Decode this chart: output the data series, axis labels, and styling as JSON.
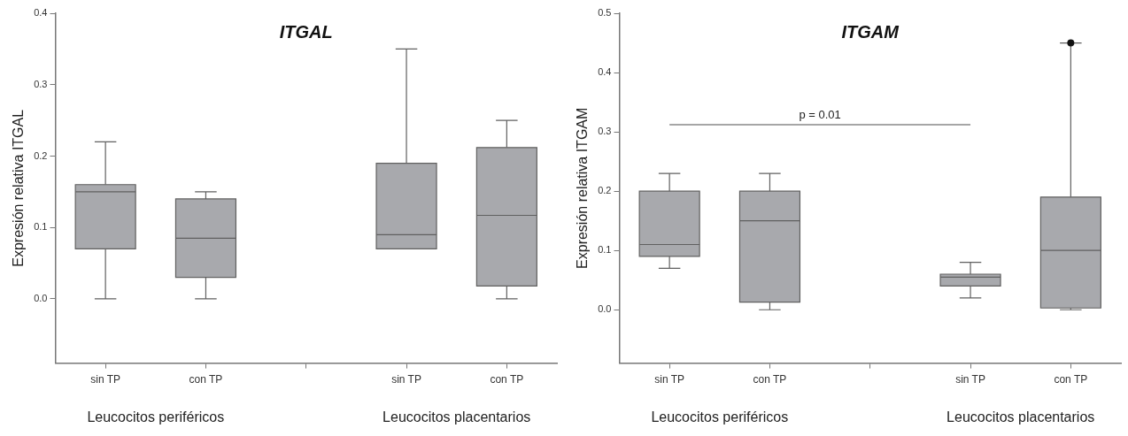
{
  "chart_data": [
    {
      "type": "box",
      "title": "ITGAL",
      "ylabel": "Expresión relativa ITGAL",
      "categories": [
        "sin TP",
        "con TP",
        null,
        "sin TP",
        "con TP"
      ],
      "color": "#a8a9ad",
      "boxes": [
        {
          "low": 0,
          "q1": 0.07,
          "median": 0.15,
          "q3": 0.16,
          "high": 0.22
        },
        {
          "low": 0,
          "q1": 0.03,
          "median": 0.085,
          "q3": 0.14,
          "high": 0.15
        },
        null,
        {
          "low": 0.07,
          "q1": 0.07,
          "median": 0.09,
          "q3": 0.19,
          "high": 0.35
        },
        {
          "low": 0,
          "q1": 0.018,
          "median": 0.117,
          "q3": 0.212,
          "high": 0.25
        }
      ],
      "ylim": [
        -0.09,
        0.4
      ],
      "yticks": [
        {
          "value": 0,
          "label": "0.0"
        },
        0.1,
        0.2,
        0.3,
        0.4
      ],
      "grid": false,
      "annotations": [
        "Leucocitos periféricos",
        "Leucocitos placentarios"
      ]
    },
    {
      "type": "box",
      "title": "ITGAM",
      "ylabel": "Expresión relativa ITGAM",
      "categories": [
        "sin TP",
        "con TP",
        null,
        "sin TP",
        "con TP"
      ],
      "color": "#a8a9ad",
      "boxes": [
        {
          "low": 0.07,
          "q1": 0.09,
          "median": 0.11,
          "q3": 0.2,
          "high": 0.23
        },
        {
          "low": 0,
          "q1": 0.013,
          "median": 0.15,
          "q3": 0.2,
          "high": 0.23
        },
        null,
        {
          "low": 0.02,
          "q1": 0.04,
          "median": 0.055,
          "q3": 0.06,
          "high": 0.08
        },
        {
          "low": 0,
          "q1": 0.003,
          "median": 0.1,
          "q3": 0.19,
          "high": 0.45,
          "outliers": [
            0.45
          ]
        }
      ],
      "ylim": [
        -0.09,
        0.5
      ],
      "yticks": [
        {
          "value": 0,
          "label": "0.0"
        },
        0.1,
        0.2,
        0.3,
        0.4,
        0.5
      ],
      "grid": false,
      "annotations": [
        "Leucocitos periféricos",
        "Leucocitos placentarios",
        "p = 0.01"
      ]
    }
  ]
}
